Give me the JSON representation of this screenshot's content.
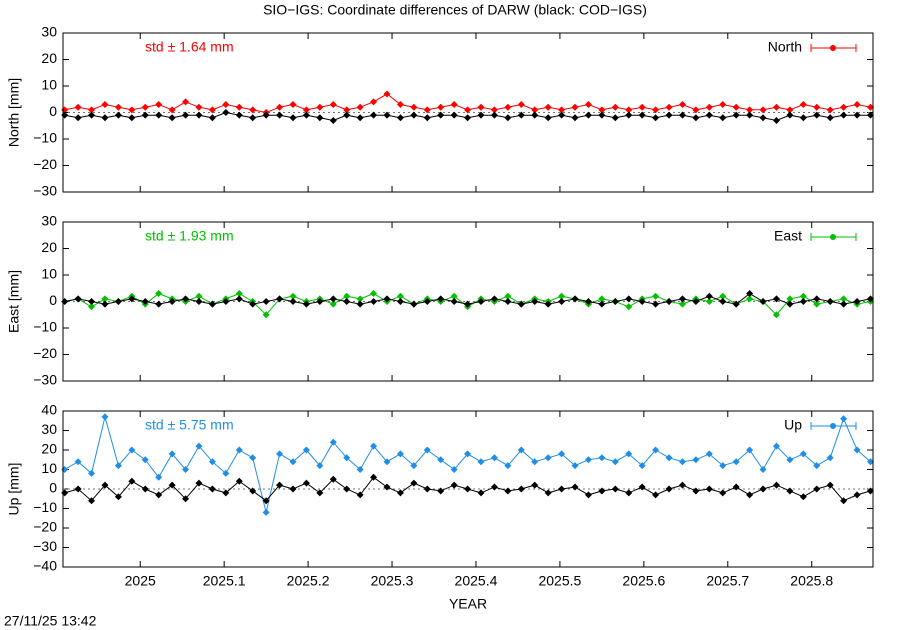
{
  "title": "SIO−IGS: Coordinate differences of DARW (black: COD−IGS)",
  "footer": "27/11/25 13:42",
  "chart_data": [
    {
      "type": "line",
      "y_label": "North [mm]",
      "annotation": "std ± 1.64 mm",
      "annotation_color": "#ff0000",
      "x": [
        2024.91,
        2024.926,
        2024.942,
        2024.958,
        2024.974,
        2024.99,
        2025.006,
        2025.022,
        2025.038,
        2025.054,
        2025.07,
        2025.086,
        2025.102,
        2025.118,
        2025.134,
        2025.15,
        2025.166,
        2025.182,
        2025.198,
        2025.214,
        2025.23,
        2025.246,
        2025.262,
        2025.278,
        2025.294,
        2025.31,
        2025.326,
        2025.342,
        2025.358,
        2025.374,
        2025.39,
        2025.406,
        2025.422,
        2025.438,
        2025.454,
        2025.47,
        2025.486,
        2025.502,
        2025.518,
        2025.534,
        2025.55,
        2025.566,
        2025.582,
        2025.598,
        2025.614,
        2025.63,
        2025.646,
        2025.662,
        2025.678,
        2025.694,
        2025.71,
        2025.726,
        2025.742,
        2025.758,
        2025.774,
        2025.79,
        2025.806,
        2025.822,
        2025.838,
        2025.854,
        2025.87
      ],
      "series": [
        {
          "name": "North",
          "color": "#ff0000",
          "values": [
            1,
            2,
            1,
            3,
            2,
            1,
            2,
            3,
            1,
            4,
            2,
            1,
            3,
            2,
            1,
            0,
            2,
            3,
            1,
            2,
            3,
            1,
            2,
            4,
            7,
            3,
            2,
            1,
            2,
            3,
            1,
            2,
            1,
            2,
            3,
            1,
            2,
            1,
            2,
            3,
            1,
            2,
            1,
            2,
            1,
            2,
            3,
            1,
            2,
            3,
            2,
            1,
            1,
            2,
            1,
            3,
            2,
            1,
            2,
            3,
            2
          ]
        },
        {
          "color": "#000000",
          "values": [
            -1,
            -2,
            -1,
            -2,
            -1,
            -2,
            -1,
            -1,
            -2,
            -1,
            -1,
            -2,
            0,
            -1,
            -2,
            -1,
            -1,
            -2,
            -1,
            -2,
            -3,
            -1,
            -2,
            -1,
            -1,
            -2,
            -1,
            -2,
            -1,
            -1,
            -2,
            -1,
            -1,
            -2,
            -1,
            -1,
            -2,
            -1,
            -2,
            -1,
            -1,
            -2,
            -1,
            -1,
            -2,
            -1,
            -1,
            -2,
            -1,
            -2,
            -1,
            -1,
            -2,
            -3,
            -1,
            -2,
            -1,
            -2,
            -1,
            -1,
            -1
          ]
        }
      ],
      "xlim": [
        2024.908,
        2025.873
      ],
      "xticks": [
        2025,
        2025.1,
        2025.2,
        2025.3,
        2025.4,
        2025.5,
        2025.6,
        2025.7,
        2025.8
      ],
      "ylim": [
        -30,
        30
      ],
      "yticks": [
        {
          "value": -30,
          "label": "−30"
        },
        {
          "value": -20,
          "label": "−20"
        },
        {
          "value": -10,
          "label": "−10"
        },
        0,
        10,
        20,
        30
      ],
      "legend": "top-right"
    },
    {
      "type": "line",
      "y_label": "East [mm]",
      "annotation": "std ± 1.93 mm",
      "annotation_color": "#00c000",
      "x": [
        2024.91,
        2024.926,
        2024.942,
        2024.958,
        2024.974,
        2024.99,
        2025.006,
        2025.022,
        2025.038,
        2025.054,
        2025.07,
        2025.086,
        2025.102,
        2025.118,
        2025.134,
        2025.15,
        2025.166,
        2025.182,
        2025.198,
        2025.214,
        2025.23,
        2025.246,
        2025.262,
        2025.278,
        2025.294,
        2025.31,
        2025.326,
        2025.342,
        2025.358,
        2025.374,
        2025.39,
        2025.406,
        2025.422,
        2025.438,
        2025.454,
        2025.47,
        2025.486,
        2025.502,
        2025.518,
        2025.534,
        2025.55,
        2025.566,
        2025.582,
        2025.598,
        2025.614,
        2025.63,
        2025.646,
        2025.662,
        2025.678,
        2025.694,
        2025.71,
        2025.726,
        2025.742,
        2025.758,
        2025.774,
        2025.79,
        2025.806,
        2025.822,
        2025.838,
        2025.854,
        2025.87
      ],
      "series": [
        {
          "name": "East",
          "color": "#00c000",
          "values": [
            0,
            1,
            -2,
            1,
            0,
            2,
            -1,
            3,
            1,
            0,
            2,
            -1,
            1,
            3,
            0,
            -5,
            1,
            2,
            0,
            1,
            -1,
            2,
            1,
            3,
            0,
            2,
            -1,
            1,
            0,
            2,
            -2,
            1,
            0,
            2,
            -1,
            1,
            0,
            2,
            1,
            -1,
            1,
            0,
            -2,
            1,
            2,
            0,
            -1,
            1,
            0,
            2,
            -1,
            1,
            0,
            -5,
            1,
            2,
            -1,
            0,
            1,
            -1,
            0
          ]
        },
        {
          "color": "#000000",
          "values": [
            0,
            1,
            0,
            -1,
            0,
            1,
            0,
            -1,
            0,
            1,
            0,
            -1,
            0,
            1,
            -1,
            0,
            1,
            0,
            -1,
            0,
            1,
            0,
            -1,
            0,
            1,
            0,
            -1,
            0,
            1,
            0,
            -1,
            0,
            1,
            0,
            -1,
            0,
            -1,
            0,
            1,
            0,
            -1,
            0,
            1,
            0,
            -1,
            0,
            1,
            0,
            2,
            0,
            -1,
            3,
            0,
            1,
            -1,
            0,
            1,
            0,
            -1,
            0,
            1
          ]
        }
      ],
      "xlim": [
        2024.908,
        2025.873
      ],
      "xticks": [
        2025,
        2025.1,
        2025.2,
        2025.3,
        2025.4,
        2025.5,
        2025.6,
        2025.7,
        2025.8
      ],
      "ylim": [
        -30,
        30
      ],
      "yticks": [
        {
          "value": -30,
          "label": "−30"
        },
        {
          "value": -20,
          "label": "−20"
        },
        {
          "value": -10,
          "label": "−10"
        },
        0,
        10,
        20,
        30
      ],
      "legend": "top-right"
    },
    {
      "type": "line",
      "y_label": "Up [mm]",
      "x_label": "YEAR",
      "annotation": "std ± 5.75 mm",
      "annotation_color": "#1e8ee6",
      "x": [
        2024.91,
        2024.926,
        2024.942,
        2024.958,
        2024.974,
        2024.99,
        2025.006,
        2025.022,
        2025.038,
        2025.054,
        2025.07,
        2025.086,
        2025.102,
        2025.118,
        2025.134,
        2025.15,
        2025.166,
        2025.182,
        2025.198,
        2025.214,
        2025.23,
        2025.246,
        2025.262,
        2025.278,
        2025.294,
        2025.31,
        2025.326,
        2025.342,
        2025.358,
        2025.374,
        2025.39,
        2025.406,
        2025.422,
        2025.438,
        2025.454,
        2025.47,
        2025.486,
        2025.502,
        2025.518,
        2025.534,
        2025.55,
        2025.566,
        2025.582,
        2025.598,
        2025.614,
        2025.63,
        2025.646,
        2025.662,
        2025.678,
        2025.694,
        2025.71,
        2025.726,
        2025.742,
        2025.758,
        2025.774,
        2025.79,
        2025.806,
        2025.822,
        2025.838,
        2025.854,
        2025.87
      ],
      "series": [
        {
          "name": "Up",
          "color": "#1e8ee6",
          "values": [
            10,
            14,
            8,
            37,
            12,
            20,
            15,
            6,
            18,
            10,
            22,
            14,
            8,
            20,
            16,
            -12,
            18,
            14,
            20,
            12,
            24,
            16,
            10,
            22,
            14,
            18,
            12,
            20,
            15,
            10,
            18,
            14,
            16,
            12,
            20,
            14,
            16,
            18,
            12,
            15,
            16,
            14,
            18,
            12,
            20,
            16,
            14,
            15,
            18,
            12,
            14,
            20,
            10,
            22,
            15,
            18,
            12,
            16,
            36,
            20,
            14
          ]
        },
        {
          "color": "#000000",
          "values": [
            -2,
            0,
            -6,
            2,
            -4,
            4,
            0,
            -3,
            2,
            -5,
            3,
            0,
            -2,
            4,
            -1,
            -6,
            2,
            0,
            3,
            -2,
            5,
            0,
            -3,
            6,
            1,
            -2,
            3,
            0,
            -1,
            2,
            0,
            -2,
            1,
            -1,
            0,
            2,
            -2,
            0,
            1,
            -3,
            -1,
            0,
            -2,
            1,
            -3,
            0,
            2,
            -1,
            0,
            -2,
            1,
            -3,
            0,
            2,
            -1,
            -4,
            0,
            2,
            -6,
            -3,
            -1
          ]
        }
      ],
      "xlim": [
        2024.908,
        2025.873
      ],
      "xticks": [
        2025,
        2025.1,
        2025.2,
        2025.3,
        2025.4,
        2025.5,
        2025.6,
        2025.7,
        2025.8
      ],
      "ylim": [
        -40,
        40
      ],
      "yticks": [
        {
          "value": -40,
          "label": "−40"
        },
        {
          "value": -30,
          "label": "−30"
        },
        {
          "value": -20,
          "label": "−20"
        },
        {
          "value": -10,
          "label": "−10"
        },
        0,
        10,
        20,
        30,
        40
      ],
      "legend": "top-right"
    }
  ]
}
